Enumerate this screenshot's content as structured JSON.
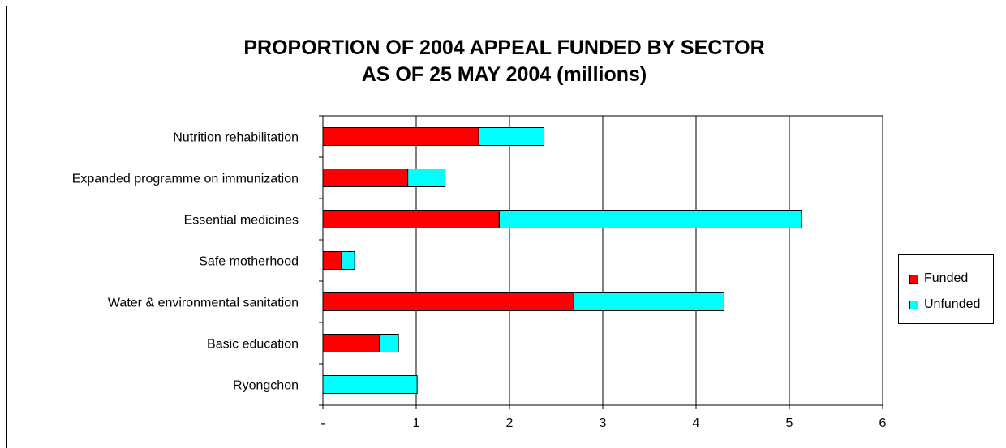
{
  "chart_data": {
    "type": "bar",
    "orientation": "horizontal",
    "stacked": true,
    "title_lines": [
      "PROPORTION OF 2004 APPEAL FUNDED BY SECTOR",
      "AS OF 25 MAY 2004 (millions)"
    ],
    "categories": [
      "Nutrition rehabilitation",
      "Expanded programme on immunization",
      "Essential medicines",
      "Safe motherhood",
      "Water & environmental sanitation",
      "Basic education",
      "Ryongchon"
    ],
    "series": [
      {
        "name": "Funded",
        "color": "#ff0000",
        "values": [
          1.67,
          0.91,
          1.89,
          0.2,
          2.69,
          0.61,
          0
        ]
      },
      {
        "name": "Unfunded",
        "color": "#00ffff",
        "values": [
          0.7,
          0.4,
          3.24,
          0.14,
          1.61,
          0.2,
          1.01
        ]
      }
    ],
    "x_tick_labels": [
      "-",
      "1",
      "2",
      "3",
      "4",
      "5",
      "6"
    ],
    "xlim": [
      0,
      6
    ],
    "grid": "vertical",
    "legend": "right"
  }
}
